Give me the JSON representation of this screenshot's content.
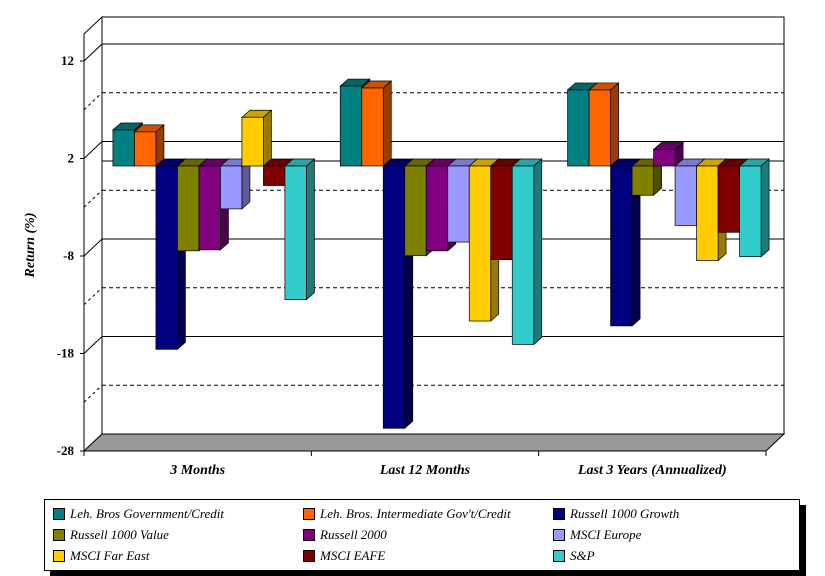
{
  "chart_data": {
    "type": "bar",
    "ylabel": "Return (%)",
    "ylim": [
      -28,
      12
    ],
    "y_ticks": [
      "12",
      "2",
      "-8",
      "-18",
      "-28"
    ],
    "categories": [
      "3 Months",
      "Last 12 Months",
      "Last 3 Years (Annualized)"
    ],
    "series": [
      {
        "name": "Leh. Bros Government/Credit",
        "color": "#008080",
        "values": [
          3.7,
          8.2,
          7.8
        ]
      },
      {
        "name": "Leh. Bros. Intermediate Gov't/Credit",
        "color": "#FF6600",
        "values": [
          3.5,
          8.0,
          7.8
        ]
      },
      {
        "name": "Russell 1000 Growth",
        "color": "#000080",
        "values": [
          -18.8,
          -26.9,
          -16.4
        ]
      },
      {
        "name": "Russell 1000 Value",
        "color": "#808000",
        "values": [
          -8.7,
          -9.2,
          -3.0
        ]
      },
      {
        "name": "Russell 2000",
        "color": "#800080",
        "values": [
          -8.6,
          -8.7,
          1.7
        ]
      },
      {
        "name": "MSCI Europe",
        "color": "#9999FF",
        "values": [
          -4.4,
          -7.8,
          -6.1
        ]
      },
      {
        "name": "MSCI Far East",
        "color": "#FFCC00",
        "values": [
          5.0,
          -15.9,
          -9.7
        ]
      },
      {
        "name": "MSCI EAFE",
        "color": "#800000",
        "values": [
          -2.0,
          -9.6,
          -6.8
        ]
      },
      {
        "name": "S&P",
        "color": "#33CCCC",
        "values": [
          -13.7,
          -18.3,
          -9.3
        ]
      }
    ]
  }
}
